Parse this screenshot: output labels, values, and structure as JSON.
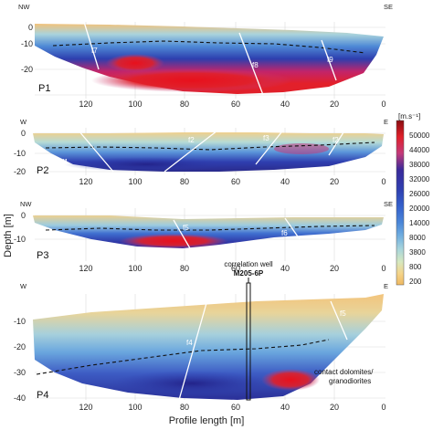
{
  "chart_data": {
    "type": "heatmap",
    "xlabel": "Profile length [m]",
    "ylabel": "Depth [m]",
    "colorbar": {
      "unit": "[m.s⁻¹]",
      "ticks": [
        "50000",
        "44000",
        "38000",
        "32000",
        "26000",
        "20000",
        "14000",
        "8000",
        "3800",
        "800",
        "200"
      ],
      "colors": [
        "#8a0d10",
        "#e0202a",
        "#c43a7a",
        "#3a2a9a",
        "#2f3fb0",
        "#3460cc",
        "#4a86d8",
        "#70aee0",
        "#a6d4dc",
        "#d6e8c0",
        "#f4d48a",
        "#efb860"
      ]
    },
    "panels": [
      {
        "id": "P1",
        "label": "P1",
        "ends": [
          "NW",
          "SE"
        ],
        "xticks": [
          "120",
          "100",
          "80",
          "60",
          "40",
          "20",
          "0"
        ],
        "yticks": [
          "0",
          "-10",
          "-20"
        ],
        "faults": [
          "f7",
          "f8",
          "f9"
        ]
      },
      {
        "id": "P2",
        "label": "P2",
        "ends": [
          "W",
          "E"
        ],
        "xticks": [
          "120",
          "100",
          "80",
          "60",
          "40",
          "20",
          "0"
        ],
        "yticks": [
          "0",
          "-10",
          "-20"
        ],
        "faults": [
          "f1",
          "f2",
          "f3",
          "f2"
        ]
      },
      {
        "id": "P3",
        "label": "P3",
        "ends": [
          "NW",
          "SE"
        ],
        "xticks": [
          "120",
          "100",
          "80",
          "60",
          "40",
          "20",
          "0"
        ],
        "yticks": [
          "0",
          "-10"
        ],
        "faults": [
          "f5",
          "f6"
        ]
      },
      {
        "id": "P4",
        "label": "P4",
        "ends": [
          "W",
          "E"
        ],
        "xticks": [
          "120",
          "100",
          "80",
          "60",
          "40",
          "20",
          "0"
        ],
        "yticks": [
          "-10",
          "-20",
          "-30",
          "-40"
        ],
        "faults": [
          "f4",
          "f5"
        ]
      }
    ],
    "annotations": {
      "well_caption": "correlation well",
      "well_name": "M205-6P",
      "contact_line1": "contact dolomites/",
      "contact_line2": "granodiorites"
    }
  }
}
